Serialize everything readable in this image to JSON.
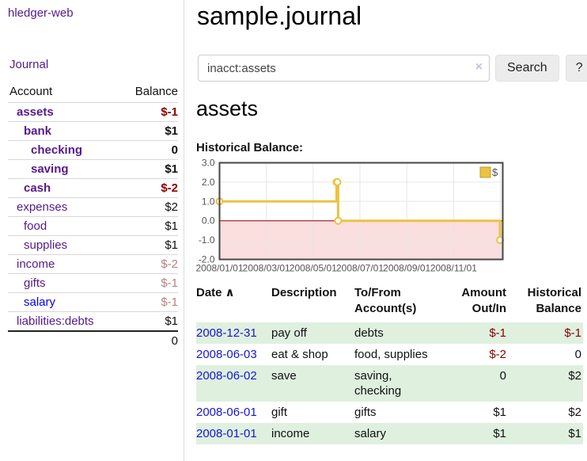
{
  "sidebar": {
    "app_title": "hledger-web",
    "journal_link": "Journal",
    "table": {
      "account_header": "Account",
      "balance_header": "Balance",
      "rows": [
        {
          "name": "assets",
          "balance": "$-1"
        },
        {
          "name": "bank",
          "balance": "$1"
        },
        {
          "name": "checking",
          "balance": "0"
        },
        {
          "name": "saving",
          "balance": "$1"
        },
        {
          "name": "cash",
          "balance": "$-2"
        },
        {
          "name": "expenses",
          "balance": "$2"
        },
        {
          "name": "food",
          "balance": "$1"
        },
        {
          "name": "supplies",
          "balance": "$1"
        },
        {
          "name": "income",
          "balance": "$-2"
        },
        {
          "name": "gifts",
          "balance": "$-1"
        },
        {
          "name": "salary",
          "balance": "$-1"
        },
        {
          "name": "liabilities:debts",
          "balance": "$1"
        }
      ],
      "total": "0"
    }
  },
  "main": {
    "title": "sample.journal",
    "search": {
      "value": "inacct:assets",
      "clear_icon": "×",
      "search_button": "Search",
      "help_button": "?"
    },
    "section_title": "assets",
    "chart_label": "Historical Balance:"
  },
  "chart_data": {
    "type": "line",
    "line_style": "steps",
    "title": "Historical Balance",
    "x_ticks": [
      "2008/01/01",
      "2008/03/01",
      "2008/05/01",
      "2008/07/01",
      "2008/09/01",
      "2008/11/01"
    ],
    "x_tick_interval_months": 2,
    "xlim_months": [
      0,
      12.1
    ],
    "y_ticks": [
      3.0,
      2.0,
      1.0,
      0.0,
      -1.0,
      -2.0
    ],
    "ylim": [
      -2,
      3
    ],
    "grid": true,
    "legend_position": "top-right",
    "legend": [
      {
        "label": "$",
        "color": "#edc240"
      }
    ],
    "zero_line_color": "#8b0000",
    "negative_region_color": "#fbdede",
    "series": [
      {
        "name": "$",
        "color": "#edc240",
        "points": [
          {
            "date": "2008-01-01",
            "value": 1
          },
          {
            "date": "2008-06-01",
            "value": 2
          },
          {
            "date": "2008-06-02",
            "value": 2
          },
          {
            "date": "2008-06-03",
            "value": 0
          },
          {
            "date": "2008-12-31",
            "value": -1
          }
        ]
      }
    ]
  },
  "transactions": {
    "headers": {
      "date": "Date",
      "sort_icon": "∧",
      "description": "Description",
      "accounts": "To/From Account(s)",
      "amount": "Amount Out/In",
      "balance": "Historical Balance"
    },
    "rows": [
      {
        "date": "2008-12-31",
        "description": "pay off",
        "accounts": "debts",
        "amount": "$-1",
        "balance": "$-1"
      },
      {
        "date": "2008-06-03",
        "description": "eat & shop",
        "accounts": "food, supplies",
        "amount": "$-2",
        "balance": "0"
      },
      {
        "date": "2008-06-02",
        "description": "save",
        "accounts": "saving, checking",
        "amount": "0",
        "balance": "$2"
      },
      {
        "date": "2008-06-01",
        "description": "gift",
        "accounts": "gifts",
        "amount": "$1",
        "balance": "$2"
      },
      {
        "date": "2008-01-01",
        "description": "income",
        "accounts": "salary",
        "amount": "$1",
        "balance": "$1"
      }
    ]
  }
}
